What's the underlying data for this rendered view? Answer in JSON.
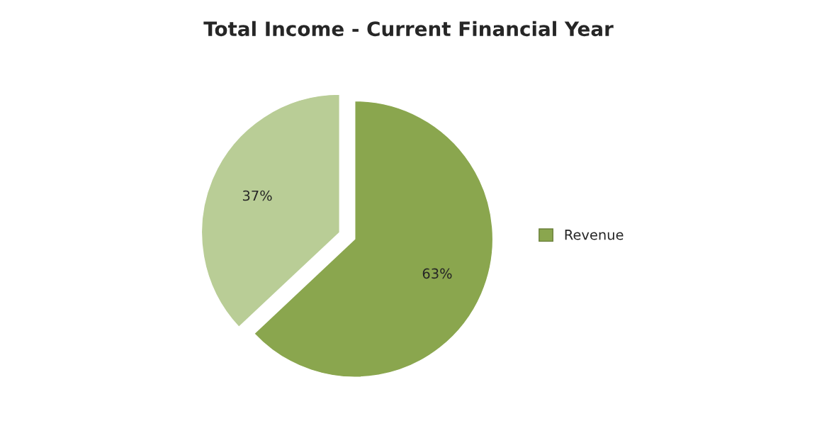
{
  "chart_data": {
    "type": "pie",
    "title": "Total Income - Current Financial Year",
    "categories": [
      "Revenue",
      null
    ],
    "values": [
      63,
      37
    ],
    "colors": [
      "#8aa64e",
      "#b9cd96"
    ],
    "value_labels": [
      "63%",
      "37%"
    ],
    "legend": "right"
  }
}
